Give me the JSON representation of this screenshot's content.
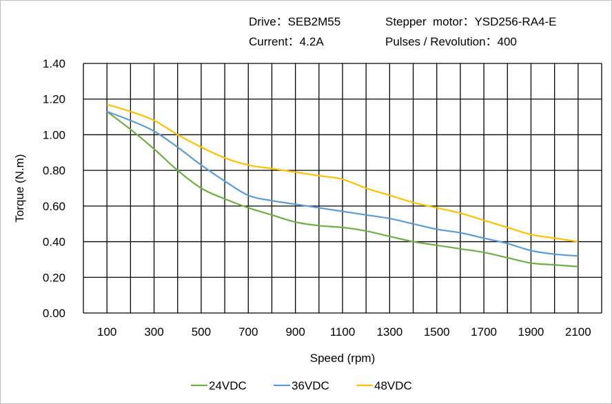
{
  "header": {
    "drive": "Drive：SEB2M55",
    "motor": "Stepper  motor：YSD256-RA4-E",
    "current": "Current：4.2A",
    "pulses": "Pulses / Revolution：400"
  },
  "chart_data": {
    "type": "line",
    "xlabel": "Speed  (rpm)",
    "ylabel": "Torque (N.m)",
    "xlim": [
      0,
      2200
    ],
    "ylim": [
      0,
      1.4
    ],
    "x_ticks": [
      100,
      300,
      500,
      700,
      900,
      1100,
      1300,
      1500,
      1700,
      1900,
      2100
    ],
    "y_ticks": [
      "0.00",
      "0.20",
      "0.40",
      "0.60",
      "0.80",
      "1.00",
      "1.20",
      "1.40"
    ],
    "grid": true,
    "legend_position": "bottom",
    "x": [
      100,
      200,
      300,
      400,
      500,
      600,
      700,
      800,
      900,
      1000,
      1100,
      1200,
      1300,
      1400,
      1500,
      1600,
      1700,
      1800,
      1900,
      2000,
      2100
    ],
    "series": [
      {
        "name": "24VDC",
        "color": "#70ad47",
        "values": [
          1.13,
          1.03,
          0.92,
          0.8,
          0.7,
          0.64,
          0.59,
          0.55,
          0.51,
          0.49,
          0.48,
          0.46,
          0.43,
          0.4,
          0.38,
          0.36,
          0.34,
          0.31,
          0.28,
          0.27,
          0.26
        ]
      },
      {
        "name": "36VDC",
        "color": "#5b9bd5",
        "values": [
          1.13,
          1.08,
          1.02,
          0.93,
          0.83,
          0.74,
          0.66,
          0.63,
          0.61,
          0.59,
          0.57,
          0.55,
          0.53,
          0.5,
          0.47,
          0.45,
          0.42,
          0.39,
          0.35,
          0.33,
          0.32
        ]
      },
      {
        "name": "48VDC",
        "color": "#ffc000",
        "values": [
          1.17,
          1.13,
          1.08,
          1.0,
          0.93,
          0.87,
          0.83,
          0.81,
          0.79,
          0.77,
          0.75,
          0.7,
          0.66,
          0.62,
          0.59,
          0.56,
          0.52,
          0.48,
          0.44,
          0.42,
          0.4
        ]
      }
    ]
  }
}
